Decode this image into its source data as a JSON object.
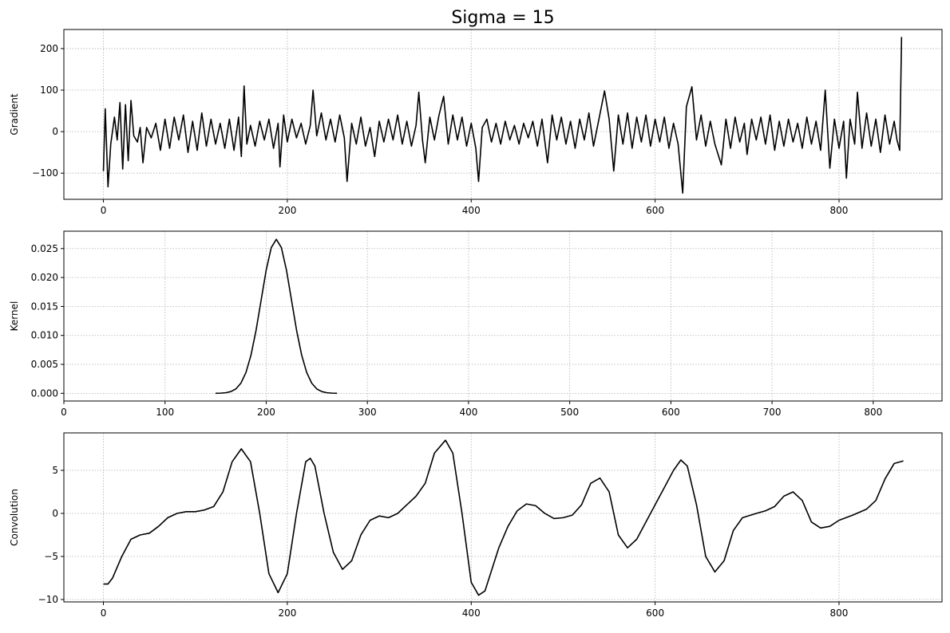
{
  "chart_data": [
    {
      "type": "line",
      "title": "Sigma = 15",
      "ylabel": "Gradient",
      "color": "#000000",
      "grid": true,
      "xlim": [
        -43,
        912
      ],
      "ylim": [
        -163,
        246
      ],
      "xticks": [
        0,
        200,
        400,
        600,
        800
      ],
      "yticks": [
        {
          "value": -100,
          "label": "−100"
        },
        0,
        100,
        200
      ],
      "x": [
        0,
        2,
        5,
        8,
        12,
        15,
        18,
        21,
        24,
        27,
        30,
        33,
        37,
        40,
        43,
        47,
        52,
        57,
        62,
        67,
        72,
        77,
        82,
        87,
        92,
        97,
        102,
        107,
        112,
        117,
        122,
        127,
        132,
        137,
        142,
        147,
        150,
        153,
        156,
        160,
        165,
        170,
        175,
        180,
        185,
        190,
        192,
        196,
        200,
        205,
        210,
        215,
        220,
        225,
        228,
        232,
        237,
        242,
        247,
        252,
        257,
        262,
        265,
        270,
        275,
        280,
        285,
        290,
        295,
        300,
        305,
        310,
        315,
        320,
        325,
        330,
        335,
        340,
        343,
        347,
        350,
        355,
        360,
        365,
        370,
        375,
        380,
        385,
        390,
        395,
        400,
        405,
        408,
        412,
        417,
        422,
        427,
        432,
        437,
        442,
        447,
        452,
        457,
        462,
        467,
        472,
        477,
        483,
        488,
        493,
        498,
        503,
        508,
        513,
        518,
        523,
        528,
        533,
        538,
        545,
        550,
        555,
        560,
        565,
        570,
        575,
        580,
        585,
        590,
        595,
        600,
        605,
        610,
        615,
        620,
        625,
        630,
        634,
        640,
        645,
        650,
        655,
        660,
        665,
        672,
        677,
        682,
        687,
        692,
        697,
        700,
        705,
        710,
        715,
        720,
        725,
        730,
        735,
        740,
        745,
        750,
        755,
        760,
        765,
        770,
        775,
        780,
        785,
        790,
        795,
        800,
        805,
        808,
        812,
        817,
        820,
        825,
        830,
        835,
        840,
        845,
        850,
        855,
        860,
        863,
        866,
        868
      ],
      "values": [
        -95,
        55,
        -133,
        -30,
        35,
        -20,
        70,
        -90,
        65,
        -70,
        75,
        -10,
        -25,
        10,
        -75,
        10,
        -15,
        20,
        -45,
        30,
        -40,
        35,
        -20,
        40,
        -50,
        25,
        -45,
        45,
        -35,
        30,
        -30,
        20,
        -40,
        30,
        -45,
        35,
        -60,
        110,
        -30,
        15,
        -35,
        25,
        -20,
        30,
        -40,
        20,
        -85,
        40,
        -25,
        30,
        -15,
        20,
        -30,
        15,
        100,
        -10,
        45,
        -20,
        30,
        -25,
        40,
        -15,
        -120,
        20,
        -30,
        35,
        -35,
        10,
        -60,
        25,
        -25,
        30,
        -20,
        40,
        -30,
        25,
        -35,
        15,
        95,
        -20,
        -75,
        35,
        -20,
        40,
        85,
        -30,
        40,
        -20,
        35,
        -35,
        20,
        -40,
        -120,
        10,
        30,
        -25,
        20,
        -30,
        25,
        -20,
        15,
        -30,
        20,
        -15,
        25,
        -35,
        30,
        -75,
        40,
        -20,
        35,
        -30,
        25,
        -40,
        30,
        -20,
        45,
        -35,
        20,
        98,
        30,
        -95,
        40,
        -30,
        45,
        -40,
        35,
        -25,
        40,
        -35,
        30,
        -25,
        35,
        -40,
        20,
        -30,
        -148,
        60,
        108,
        -20,
        40,
        -35,
        25,
        -30,
        -80,
        30,
        -40,
        35,
        -25,
        20,
        -55,
        30,
        -20,
        35,
        -30,
        40,
        -45,
        25,
        -35,
        30,
        -25,
        20,
        -40,
        35,
        -30,
        25,
        -45,
        100,
        -88,
        30,
        -40,
        25,
        -112,
        30,
        -30,
        95,
        -40,
        45,
        -35,
        30,
        -50,
        40,
        -30,
        25,
        -20,
        -45,
        228
      ]
    },
    {
      "type": "line",
      "ylabel": "Kernel",
      "color": "#000000",
      "grid": true,
      "xlim": [
        0,
        868
      ],
      "ylim": [
        -0.00133,
        0.028
      ],
      "xticks": [
        0,
        100,
        200,
        300,
        400,
        500,
        600,
        700,
        800
      ],
      "yticks": [
        {
          "value": 0,
          "label": "0.000"
        },
        {
          "value": 0.005,
          "label": "0.005"
        },
        {
          "value": 0.01,
          "label": "0.010"
        },
        {
          "value": 0.015,
          "label": "0.015"
        },
        {
          "value": 0.02,
          "label": "0.020"
        },
        {
          "value": 0.025,
          "label": "0.025"
        }
      ],
      "x": [
        150,
        155,
        160,
        165,
        170,
        175,
        180,
        185,
        190,
        195,
        200,
        205,
        210,
        215,
        220,
        225,
        230,
        235,
        240,
        245,
        250,
        255,
        260,
        265,
        270
      ],
      "values": [
        8.9e-06,
        3e-05,
        0.0001,
        0.0003,
        0.00075,
        0.00175,
        0.0036,
        0.00663,
        0.0109,
        0.0161,
        0.0213,
        0.02517,
        0.0266,
        0.02517,
        0.0213,
        0.0161,
        0.0109,
        0.00663,
        0.0036,
        0.00175,
        0.00075,
        0.0003,
        0.0001,
        3e-05,
        8.9e-06
      ]
    },
    {
      "type": "line",
      "ylabel": "Convolution",
      "color": "#000000",
      "grid": true,
      "xlim": [
        -43,
        912
      ],
      "ylim": [
        -10.28,
        9.35
      ],
      "xticks": [
        0,
        200,
        400,
        600,
        800
      ],
      "yticks": [
        {
          "value": -10,
          "label": "−10"
        },
        {
          "value": -5,
          "label": "−5"
        },
        0,
        5
      ],
      "x": [
        0,
        5,
        10,
        20,
        30,
        40,
        50,
        60,
        70,
        80,
        90,
        100,
        110,
        120,
        130,
        140,
        150,
        160,
        170,
        180,
        190,
        200,
        210,
        220,
        225,
        230,
        240,
        250,
        260,
        270,
        280,
        290,
        300,
        310,
        320,
        330,
        340,
        350,
        360,
        372,
        380,
        390,
        400,
        408,
        415,
        430,
        440,
        450,
        460,
        470,
        480,
        490,
        500,
        510,
        520,
        530,
        540,
        550,
        560,
        570,
        580,
        590,
        600,
        610,
        620,
        628,
        635,
        645,
        655,
        665,
        675,
        685,
        695,
        710,
        720,
        730,
        740,
        750,
        760,
        770,
        780,
        790,
        800,
        815,
        830,
        840,
        850,
        860,
        870
      ],
      "values": [
        -8.2,
        -8.2,
        -7.5,
        -5,
        -3,
        -2.5,
        -2.3,
        -1.5,
        -0.5,
        0,
        0.2,
        0.2,
        0.4,
        0.8,
        2.5,
        6,
        7.5,
        6,
        0,
        -7,
        -9.2,
        -7,
        0,
        6,
        6.4,
        5.5,
        0,
        -4.5,
        -6.5,
        -5.5,
        -2.5,
        -0.8,
        -0.3,
        -0.5,
        0,
        1,
        2,
        3.5,
        7,
        8.5,
        7,
        0,
        -8,
        -9.5,
        -9,
        -4,
        -1.5,
        0.3,
        1.1,
        0.9,
        0,
        -0.6,
        -0.5,
        -0.2,
        1,
        3.5,
        4.1,
        2.5,
        -2.5,
        -4,
        -3,
        -1,
        1,
        3,
        5,
        6.2,
        5.5,
        1,
        -5,
        -6.8,
        -5.5,
        -2,
        -0.5,
        0,
        0.3,
        0.8,
        2,
        2.5,
        1.5,
        -1,
        -1.7,
        -1.5,
        -0.8,
        -0.2,
        0.5,
        1.5,
        4,
        5.8,
        6.1
      ]
    }
  ]
}
